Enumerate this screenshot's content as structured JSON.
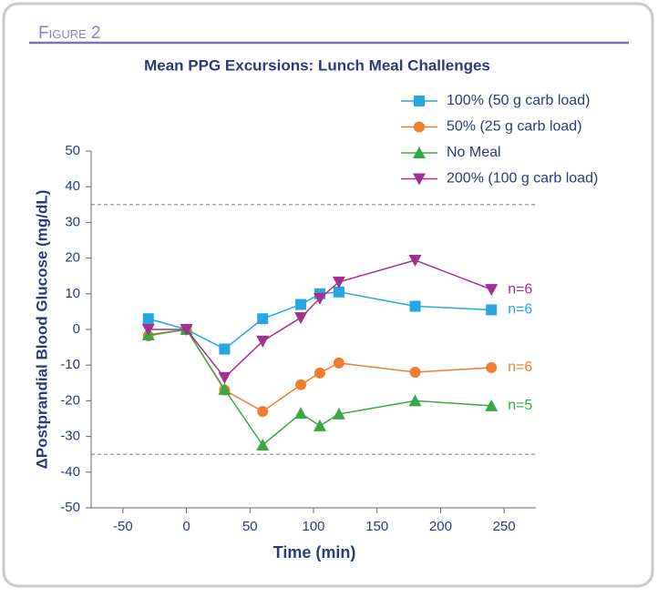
{
  "figure_label": "Figure 2",
  "chart_data": {
    "type": "line",
    "title": "Mean PPG Excursions: Lunch Meal Challenges",
    "xlabel": "Time (min)",
    "ylabel": "ΔPostprandial Blood Glucose (mg/dL)",
    "x": [
      -30,
      0,
      30,
      60,
      90,
      105,
      120,
      180,
      240
    ],
    "xlim": [
      -75,
      275
    ],
    "xticks": [
      -50,
      0,
      50,
      100,
      150,
      200,
      250
    ],
    "ylim": [
      -50,
      50
    ],
    "yticks": [
      -50,
      -40,
      -30,
      -20,
      -10,
      0,
      10,
      20,
      30,
      40,
      50
    ],
    "reference_lines": [
      35,
      -35
    ],
    "legend_position": "upper right",
    "series": [
      {
        "name": "100% (50 g carb load)",
        "color": "#27a7df",
        "marker": "square",
        "end_label": "n=6",
        "values": [
          3,
          0,
          -5.5,
          3,
          7,
          10,
          10.5,
          6.5,
          5.5
        ]
      },
      {
        "name": "50% (25 g carb load)",
        "color": "#ef7d30",
        "marker": "circle",
        "end_label": "n=6",
        "values": [
          -1.8,
          0,
          -17,
          -23,
          -15.5,
          -12.2,
          -9.4,
          -12,
          -10.7
        ]
      },
      {
        "name": "No Meal",
        "color": "#38a847",
        "marker": "triangle",
        "end_label": "n=5",
        "values": [
          -1.5,
          0,
          -16.8,
          -32.4,
          -23.5,
          -27,
          -23.7,
          -20,
          -21.4
        ]
      },
      {
        "name": "200% (100 g carb load)",
        "color": "#a2308e",
        "marker": "triangle-down",
        "end_label": "n=6",
        "values": [
          0,
          0,
          -13.5,
          -3.3,
          3.3,
          8.7,
          13.3,
          19.4,
          11.2
        ]
      }
    ]
  }
}
